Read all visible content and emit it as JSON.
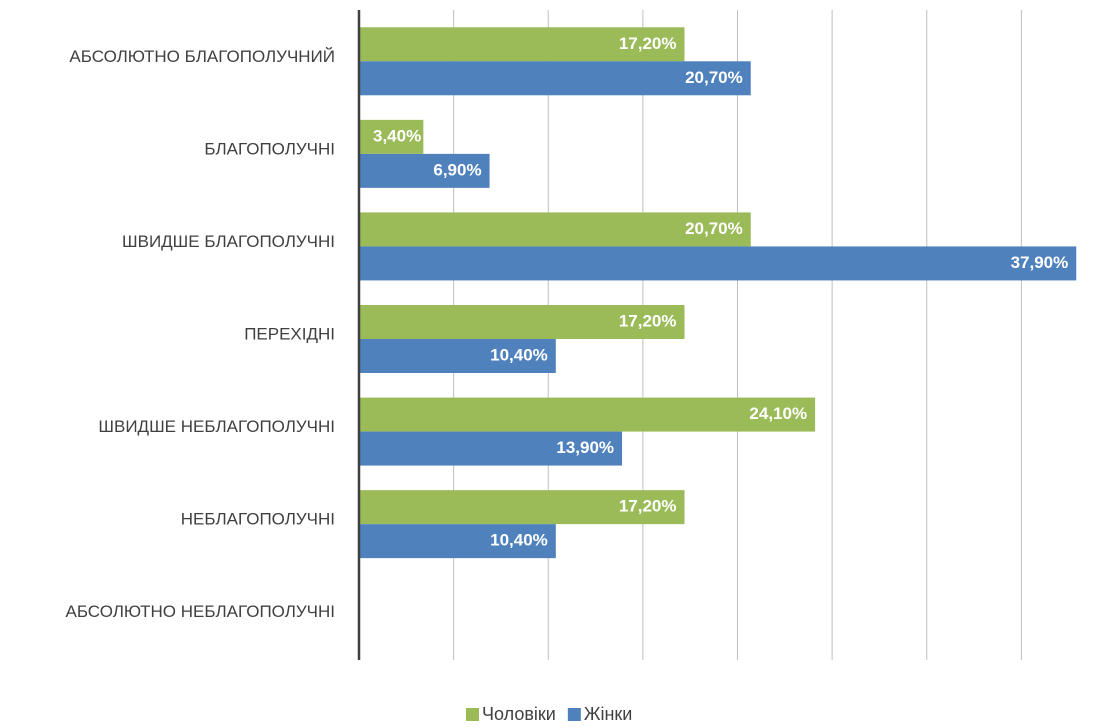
{
  "chart_data": {
    "type": "barh",
    "categories": [
      "АБСОЛЮТНО БЛАГОПОЛУЧНИЙ",
      "БЛАГОПОЛУЧНІ",
      "ШВИДШЕ БЛАГОПОЛУЧНІ",
      "ПЕРЕХІДНІ",
      "ШВИДШЕ НЕБЛАГОПОЛУЧНІ",
      "НЕБЛАГОПОЛУЧНІ",
      "АБСОЛЮТНО НЕБЛАГОПОЛУЧНІ"
    ],
    "series": [
      {
        "name": "Чоловіки",
        "color": "#9bbb59",
        "values": [
          17.2,
          3.4,
          20.7,
          17.2,
          24.1,
          17.2,
          null
        ],
        "value_labels": [
          "17,20%",
          "3,40%",
          "20,70%",
          "17,20%",
          "24,10%",
          "17,20%",
          null
        ]
      },
      {
        "name": "Жінки",
        "color": "#4f81bd",
        "values": [
          20.7,
          6.9,
          37.9,
          10.4,
          13.9,
          10.4,
          null
        ],
        "value_labels": [
          "20,70%",
          "6,90%",
          "37,90%",
          "10,40%",
          "13,90%",
          "10,40%",
          null
        ]
      }
    ],
    "xlim": [
      0,
      40
    ],
    "xticks": [
      0,
      5,
      10,
      15,
      20,
      25,
      30,
      35
    ],
    "grid": true,
    "legend": "bottom"
  }
}
